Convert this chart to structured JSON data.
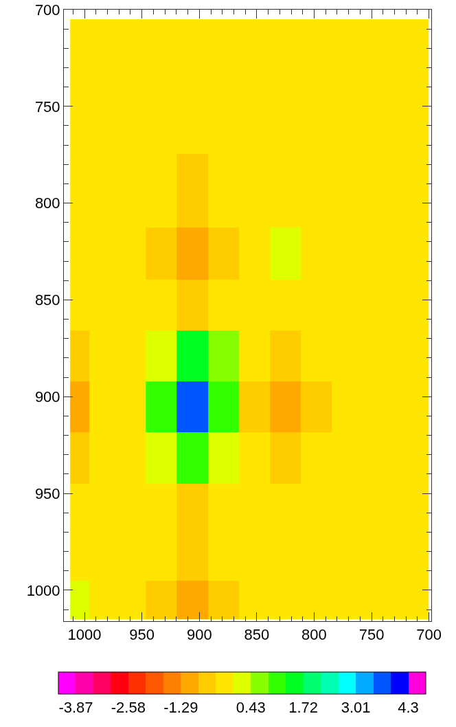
{
  "chart_data": {
    "type": "heatmap",
    "x": [
      1004,
      987,
      960,
      933,
      906,
      879,
      852,
      825,
      798,
      771,
      735,
      712
    ],
    "y": [
      720,
      750,
      799,
      826,
      853,
      879,
      905,
      932,
      958,
      985,
      1005
    ],
    "cells": [
      [
        -0.2,
        -0.2,
        -0.2,
        -0.2,
        -0.2,
        -0.2,
        -0.2,
        -0.2,
        -0.2,
        -0.2,
        -0.2,
        -0.2
      ],
      [
        -0.2,
        -0.2,
        -0.2,
        -0.2,
        -0.2,
        -0.2,
        -0.2,
        -0.2,
        -0.2,
        -0.2,
        -0.2,
        -0.2
      ],
      [
        -0.2,
        -0.2,
        -0.2,
        -0.2,
        -0.5,
        -0.2,
        -0.2,
        -0.2,
        -0.2,
        -0.2,
        -0.2,
        -0.2
      ],
      [
        -0.2,
        -0.2,
        -0.2,
        -0.5,
        -1.0,
        -0.5,
        -0.2,
        0.1,
        -0.2,
        -0.2,
        -0.2,
        -0.2
      ],
      [
        -0.2,
        -0.2,
        -0.2,
        -0.2,
        -0.6,
        -0.2,
        -0.2,
        -0.2,
        -0.2,
        -0.2,
        -0.2,
        -0.2
      ],
      [
        -0.5,
        -0.2,
        -0.2,
        0.3,
        1.3,
        0.8,
        -0.2,
        -0.5,
        -0.2,
        -0.2,
        -0.2,
        -0.2
      ],
      [
        -1.0,
        -0.3,
        -0.2,
        1.0,
        3.6,
        1.2,
        -0.5,
        -1.0,
        -0.5,
        -0.2,
        -0.2,
        -0.2
      ],
      [
        -0.5,
        -0.2,
        -0.2,
        0.2,
        1.1,
        0.3,
        -0.2,
        -0.5,
        -0.2,
        -0.2,
        -0.2,
        -0.2
      ],
      [
        -0.2,
        -0.2,
        -0.2,
        -0.2,
        -0.5,
        -0.2,
        -0.2,
        -0.2,
        -0.2,
        -0.2,
        -0.2,
        -0.2
      ],
      [
        -0.2,
        -0.2,
        -0.2,
        -0.2,
        -0.5,
        -0.2,
        -0.2,
        -0.2,
        -0.2,
        -0.2,
        -0.2,
        -0.2
      ],
      [
        0.05,
        -0.2,
        -0.2,
        -0.5,
        -1.0,
        -0.5,
        -0.2,
        -0.2,
        -0.2,
        -0.2,
        -0.2,
        -0.2
      ]
    ],
    "xlim": [
      1018,
      698
    ],
    "ylim": [
      1016,
      700
    ],
    "xticks": [
      1000,
      950,
      900,
      850,
      800,
      750,
      700
    ],
    "yticks": [
      700,
      750,
      800,
      850,
      900,
      950,
      1000
    ],
    "clim": [
      -4.3,
      4.73
    ],
    "cticks": [
      {
        "value": -3.87,
        "label": "-3.87"
      },
      {
        "value": -2.58,
        "label": "-2.58"
      },
      {
        "value": -1.29,
        "label": "-1.29"
      },
      {
        "value": 0.43,
        "label": "0.43"
      },
      {
        "value": 1.72,
        "label": "1.72"
      },
      {
        "value": 3.01,
        "label": "3.01"
      },
      {
        "value": 4.3,
        "label": "4.3"
      }
    ],
    "colors": [
      "#ff00ff",
      "#ff00aa",
      "#ff0060",
      "#ff0010",
      "#ff3000",
      "#ff5800",
      "#ff8000",
      "#ffa800",
      "#ffcc00",
      "#ffe600",
      "#ddff00",
      "#88ff00",
      "#33ff00",
      "#00ff20",
      "#00ff70",
      "#00ffb0",
      "#00ffff",
      "#00aaff",
      "#0055ff",
      "#0000ff",
      "#ff00dd"
    ],
    "grid": false
  }
}
